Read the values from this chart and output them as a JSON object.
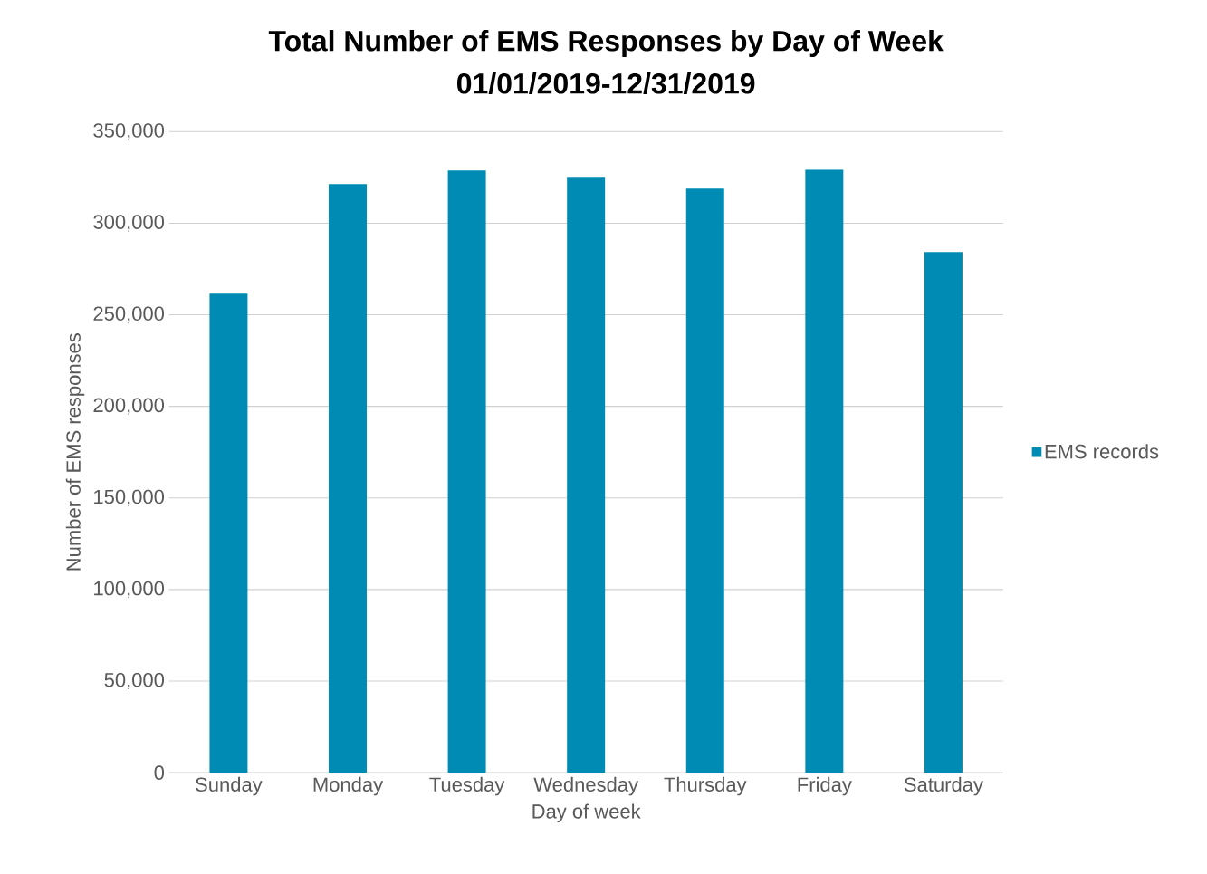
{
  "chart_data": {
    "type": "bar",
    "title": "Total Number of EMS Responses by Day of Week",
    "subtitle": "01/01/2019-12/31/2019",
    "xlabel": "Day of week",
    "ylabel": "Number of EMS responses",
    "categories": [
      "Sunday",
      "Monday",
      "Tuesday",
      "Wednesday",
      "Thursday",
      "Friday",
      "Saturday"
    ],
    "series": [
      {
        "name": "EMS records",
        "color": "#008bb5",
        "values": [
          261500,
          321300,
          328700,
          325300,
          318900,
          329200,
          284300
        ]
      }
    ],
    "ylim": [
      0,
      350000
    ],
    "yticks": [
      {
        "value": 0,
        "label": "0"
      },
      {
        "value": 50000,
        "label": "50,000"
      },
      {
        "value": 100000,
        "label": "100,000"
      },
      {
        "value": 150000,
        "label": "150,000"
      },
      {
        "value": 200000,
        "label": "200,000"
      },
      {
        "value": 250000,
        "label": "250,000"
      },
      {
        "value": 300000,
        "label": "300,000"
      },
      {
        "value": 350000,
        "label": "350,000"
      }
    ],
    "grid": "y",
    "legend": "right"
  }
}
